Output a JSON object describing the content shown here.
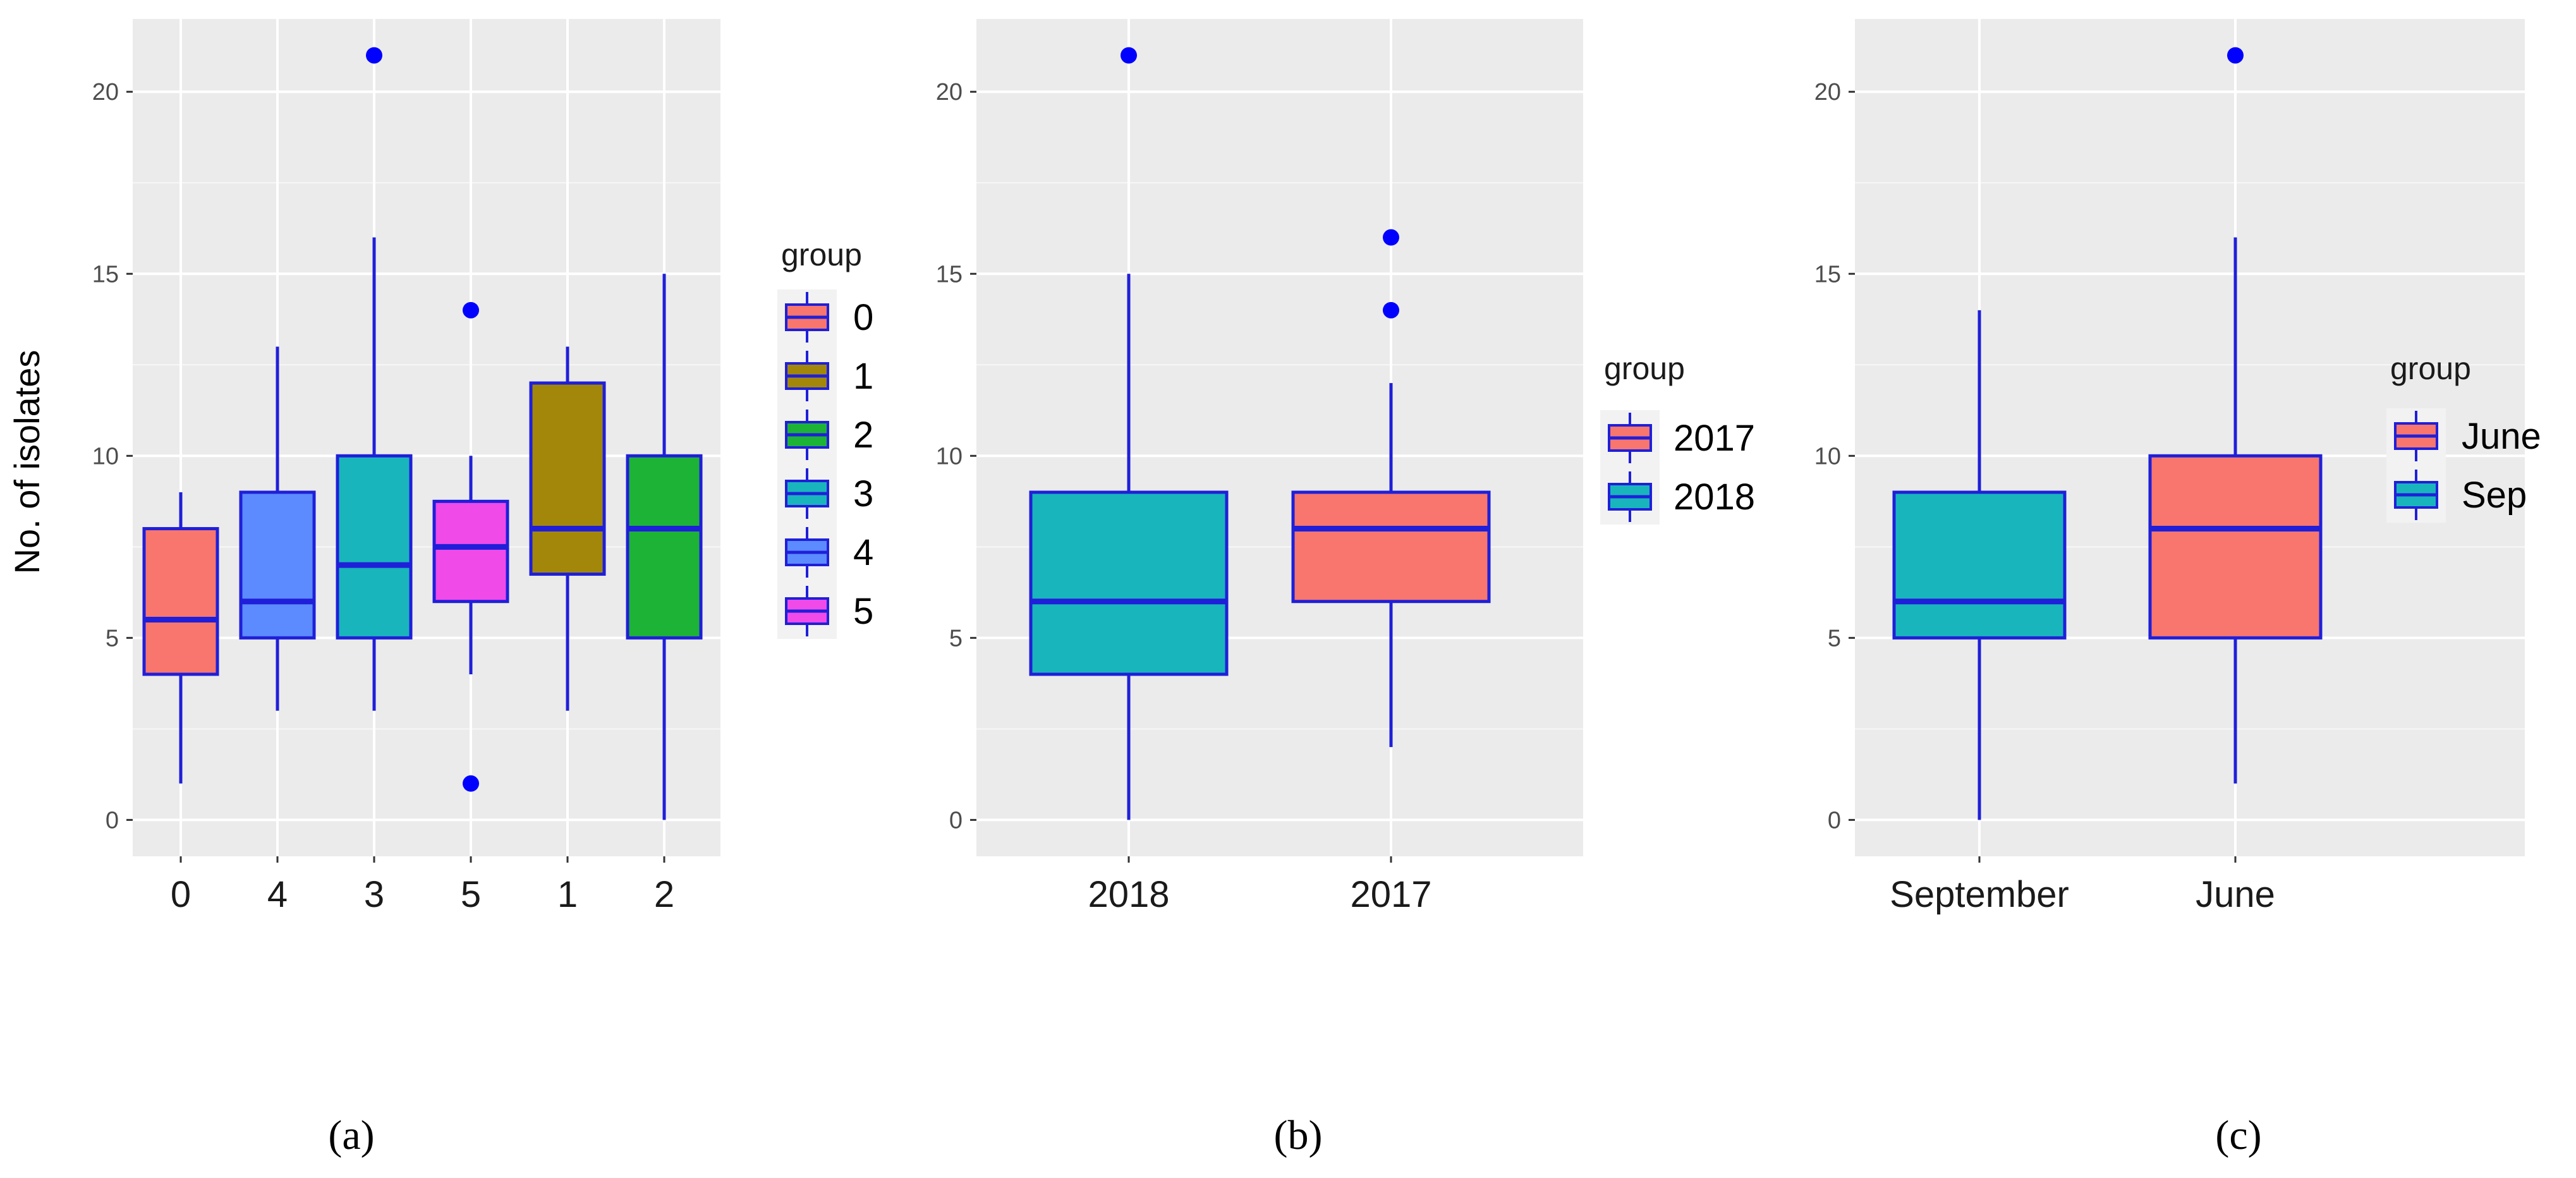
{
  "figure": {
    "colors": {
      "panel_bg": "#ebebeb",
      "grid": "#ffffff",
      "outline": "#1f1fd9",
      "outlier": "#0000ff"
    }
  },
  "chart_data": [
    {
      "id": "a",
      "caption": "(a)",
      "type": "box",
      "ylabel": "No. of isolates",
      "ylim": [
        -1,
        22
      ],
      "yticks": [
        0,
        5,
        10,
        15,
        20
      ],
      "legend_title": "group",
      "legend_placement": "right",
      "legend_entries": [
        {
          "label": "0",
          "color": "#f8766d"
        },
        {
          "label": "1",
          "color": "#a3870a"
        },
        {
          "label": "2",
          "color": "#1db336"
        },
        {
          "label": "3",
          "color": "#19b5bc"
        },
        {
          "label": "4",
          "color": "#5b8bff"
        },
        {
          "label": "5",
          "color": "#f04ae8"
        }
      ],
      "boxes": [
        {
          "category": "0",
          "color": "#f8766d",
          "min": 1,
          "q1": 4,
          "median": 5.5,
          "q3": 8,
          "max": 9,
          "outliers": []
        },
        {
          "category": "4",
          "color": "#5b8bff",
          "min": 3,
          "q1": 5,
          "median": 6,
          "q3": 9,
          "max": 13,
          "outliers": []
        },
        {
          "category": "3",
          "color": "#19b5bc",
          "min": 3,
          "q1": 5,
          "median": 7,
          "q3": 10,
          "max": 16,
          "outliers": [
            21
          ]
        },
        {
          "category": "5",
          "color": "#f04ae8",
          "min": 4,
          "q1": 6,
          "median": 7.5,
          "q3": 8.75,
          "max": 10,
          "outliers": [
            14,
            1
          ]
        },
        {
          "category": "1",
          "color": "#a3870a",
          "min": 3,
          "q1": 6.75,
          "median": 8,
          "q3": 12,
          "max": 13,
          "outliers": []
        },
        {
          "category": "2",
          "color": "#1db336",
          "min": 0,
          "q1": 5,
          "median": 8,
          "q3": 10,
          "max": 15,
          "outliers": []
        }
      ]
    },
    {
      "id": "b",
      "caption": "(b)",
      "type": "box",
      "ylabel": "",
      "ylim": [
        -1,
        22
      ],
      "yticks": [
        0,
        5,
        10,
        15,
        20
      ],
      "legend_title": "group",
      "legend_placement": "right",
      "legend_entries": [
        {
          "label": "2017",
          "color": "#f8766d"
        },
        {
          "label": "2018",
          "color": "#19b5bc"
        }
      ],
      "boxes": [
        {
          "category": "2018",
          "color": "#19b5bc",
          "min": 0,
          "q1": 4,
          "median": 6,
          "q3": 9,
          "max": 15,
          "outliers": [
            21
          ]
        },
        {
          "category": "2017",
          "color": "#f8766d",
          "min": 2,
          "q1": 6,
          "median": 8,
          "q3": 9,
          "max": 12,
          "outliers": [
            16,
            14
          ]
        }
      ]
    },
    {
      "id": "c",
      "caption": "(c)",
      "type": "box",
      "ylabel": "",
      "ylim": [
        -1,
        22
      ],
      "yticks": [
        0,
        5,
        10,
        15,
        20
      ],
      "legend_title": "group",
      "legend_placement": "right",
      "legend_entries": [
        {
          "label": "June",
          "color": "#f8766d"
        },
        {
          "label": "Sep",
          "color": "#19b5bc"
        }
      ],
      "boxes": [
        {
          "category": "September",
          "color": "#19b5bc",
          "min": 0,
          "q1": 5,
          "median": 6,
          "q3": 9,
          "max": 14,
          "outliers": []
        },
        {
          "category": "June",
          "color": "#f8766d",
          "min": 1,
          "q1": 5,
          "median": 8,
          "q3": 10,
          "max": 16,
          "outliers": [
            21
          ]
        }
      ]
    }
  ]
}
